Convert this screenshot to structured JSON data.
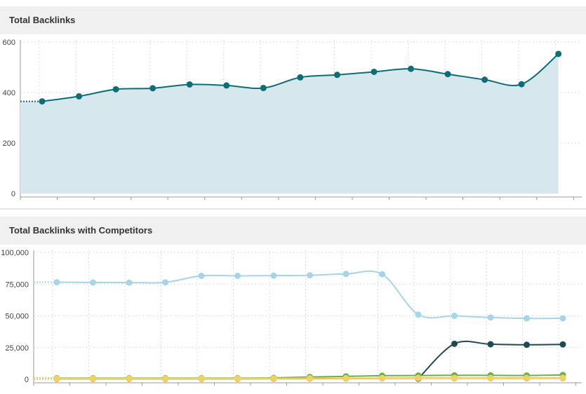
{
  "panels": [
    {
      "title": "Total Backlinks"
    },
    {
      "title": "Total Backlinks with Competitors"
    }
  ],
  "chart_data": [
    {
      "type": "area",
      "title": "Total Backlinks",
      "ylim": [
        0,
        600
      ],
      "yticks": [
        "0",
        "200",
        "400",
        "600"
      ],
      "grid": true,
      "color": "#0e6e77",
      "fill": "#d6e8ed",
      "series": [
        {
          "values": [
            365,
            385,
            413,
            417,
            432,
            428,
            418,
            460,
            470,
            482,
            494,
            473,
            451,
            433,
            553
          ]
        }
      ]
    },
    {
      "type": "line",
      "title": "Total Backlinks with Competitors",
      "ylim": [
        0,
        100000
      ],
      "yticks": [
        "0",
        "25,000",
        "50,000",
        "75,000",
        "100,000"
      ],
      "grid": true,
      "series": [
        {
          "color": "#a6d4e8",
          "values": [
            76500,
            76300,
            76200,
            76400,
            81500,
            81500,
            81700,
            82000,
            83000,
            82800,
            51000,
            50000,
            48700,
            48000,
            48000
          ]
        },
        {
          "color": "#1e4b55",
          "values": [
            null,
            null,
            null,
            null,
            null,
            null,
            null,
            null,
            null,
            null,
            500,
            28000,
            27600,
            27200,
            27500
          ]
        },
        {
          "color": "#6ab04c",
          "values": [
            900,
            900,
            900,
            900,
            900,
            900,
            1100,
            1800,
            2300,
            2800,
            3000,
            3100,
            3100,
            3000,
            3400
          ]
        },
        {
          "color": "#e8a33d",
          "values": [
            300,
            300,
            300,
            300,
            300,
            300,
            400,
            500,
            600,
            700,
            800,
            800,
            800,
            800,
            900
          ]
        },
        {
          "color": "#f0d264",
          "values": [
            600,
            600,
            600,
            600,
            600,
            600,
            700,
            800,
            900,
            1000,
            1100,
            1100,
            1100,
            1100,
            1200
          ]
        }
      ]
    }
  ]
}
